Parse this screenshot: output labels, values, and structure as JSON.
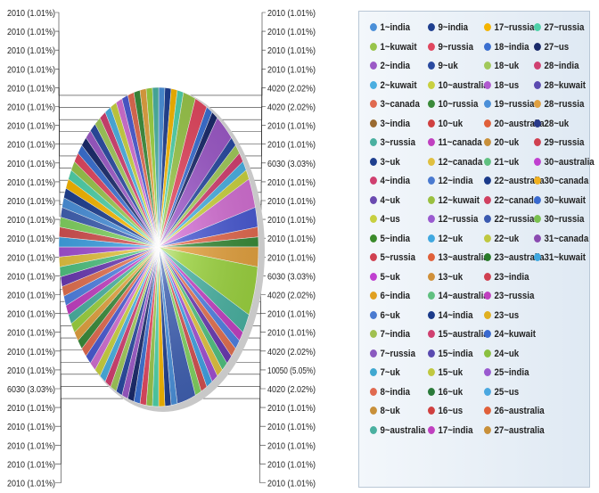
{
  "chart_data": {
    "type": "pie",
    "legend_position": "right",
    "left_labels": [
      "2010 (1.01%)",
      "2010 (1.01%)",
      "2010 (1.01%)",
      "2010 (1.01%)",
      "2010 (1.01%)",
      "2010 (1.01%)",
      "2010 (1.01%)",
      "2010 (1.01%)",
      "2010 (1.01%)",
      "2010 (1.01%)",
      "2010 (1.01%)",
      "2010 (1.01%)",
      "2010 (1.01%)",
      "2010 (1.01%)",
      "2010 (1.01%)",
      "2010 (1.01%)",
      "2010 (1.01%)",
      "2010 (1.01%)",
      "2010 (1.01%)",
      "2010 (1.01%)",
      "6030 (3.03%)",
      "2010 (1.01%)",
      "2010 (1.01%)",
      "2010 (1.01%)",
      "2010 (1.01%)",
      "2010 (1.01%)"
    ],
    "right_labels": [
      "2010 (1.01%)",
      "2010 (1.01%)",
      "2010 (1.01%)",
      "2010 (1.01%)",
      "4020 (2.02%)",
      "4020 (2.02%)",
      "2010 (1.01%)",
      "2010 (1.01%)",
      "6030 (3.03%)",
      "2010 (1.01%)",
      "2010 (1.01%)",
      "2010 (1.01%)",
      "2010 (1.01%)",
      "2010 (1.01%)",
      "6030 (3.03%)",
      "4020 (2.02%)",
      "2010 (1.01%)",
      "2010 (1.01%)",
      "4020 (2.02%)",
      "10050 (5.05%)",
      "4020 (2.02%)",
      "2010 (1.01%)",
      "2010 (1.01%)",
      "2010 (1.01%)",
      "2010 (1.01%)",
      "2010 (1.01%)"
    ],
    "slice_colors": [
      "#4a8fd8",
      "#1f3f8f",
      "#f4b400",
      "#4fd0a8",
      "#98c44a",
      "#e0475f",
      "#3a6fd0",
      "#1a2a6a",
      "#9b59c6",
      "#2a4aa0",
      "#a0c85a",
      "#d04070",
      "#4aaee0",
      "#c8d040",
      "#d06fd0",
      "#4a5ad0",
      "#e06a50",
      "#3a8a3a",
      "#e0a040",
      "#9ad040",
      "#4ab0a0",
      "#c040c0",
      "#5080e0",
      "#e07050",
      "#6a3ab0",
      "#50c080",
      "#e0c040",
      "#a050d0",
      "#40a0e0",
      "#d05050",
      "#80d060",
      "#4060b0"
    ],
    "legend_items": [
      {
        "label": "1~india",
        "color": "#4a8fd8"
      },
      {
        "label": "9~india",
        "color": "#1f3f8f"
      },
      {
        "label": "17~russia",
        "color": "#f4b400"
      },
      {
        "label": "27~russia",
        "color": "#4fd0a8"
      },
      {
        "label": "1~kuwait",
        "color": "#98c44a"
      },
      {
        "label": "9~russia",
        "color": "#e0475f"
      },
      {
        "label": "18~india",
        "color": "#3a6fd0"
      },
      {
        "label": "27~us",
        "color": "#1a2a6a"
      },
      {
        "label": "2~india",
        "color": "#9b59c6"
      },
      {
        "label": "9~uk",
        "color": "#2a4aa0"
      },
      {
        "label": "18~uk",
        "color": "#a0c85a"
      },
      {
        "label": "28~india",
        "color": "#d04070"
      },
      {
        "label": "2~kuwait",
        "color": "#4aaee0"
      },
      {
        "label": "10~australia",
        "color": "#c8d040"
      },
      {
        "label": "18~us",
        "color": "#b05ad0"
      },
      {
        "label": "28~kuwait",
        "color": "#5a4ab0"
      },
      {
        "label": "3~canada",
        "color": "#e06a50"
      },
      {
        "label": "10~russia",
        "color": "#3a8a3a"
      },
      {
        "label": "19~russia",
        "color": "#4a8fd8"
      },
      {
        "label": "28~russia",
        "color": "#e0a040"
      },
      {
        "label": "3~india",
        "color": "#9a6a30"
      },
      {
        "label": "10~uk",
        "color": "#d04040"
      },
      {
        "label": "20~australia",
        "color": "#e0603a"
      },
      {
        "label": "28~uk",
        "color": "#2a3a8a"
      },
      {
        "label": "3~russia",
        "color": "#4ab0a0"
      },
      {
        "label": "11~canada",
        "color": "#c040c0"
      },
      {
        "label": "20~uk",
        "color": "#c8903a"
      },
      {
        "label": "29~russia",
        "color": "#d04050"
      },
      {
        "label": "3~uk",
        "color": "#1f3f8f"
      },
      {
        "label": "12~canada",
        "color": "#e0c040"
      },
      {
        "label": "21~uk",
        "color": "#60c080"
      },
      {
        "label": "30~australia",
        "color": "#c040d0"
      },
      {
        "label": "4~india",
        "color": "#d04070"
      },
      {
        "label": "12~india",
        "color": "#4a7ad0"
      },
      {
        "label": "22~australia",
        "color": "#1a3a8a"
      },
      {
        "label": "30~canada",
        "color": "#f0b020"
      },
      {
        "label": "4~uk",
        "color": "#6a4ab0"
      },
      {
        "label": "12~kuwait",
        "color": "#9ac040"
      },
      {
        "label": "22~canada",
        "color": "#d04060"
      },
      {
        "label": "30~kuwait",
        "color": "#3a6ad0"
      },
      {
        "label": "4~us",
        "color": "#c8d040"
      },
      {
        "label": "12~russia",
        "color": "#9a5ad0"
      },
      {
        "label": "22~russia",
        "color": "#3a5ab0"
      },
      {
        "label": "30~russia",
        "color": "#7ac050"
      },
      {
        "label": "5~india",
        "color": "#3a8a2a"
      },
      {
        "label": "12~uk",
        "color": "#40a8e0"
      },
      {
        "label": "22~uk",
        "color": "#c0c840"
      },
      {
        "label": "31~canada",
        "color": "#8a4ab0"
      },
      {
        "label": "5~russia",
        "color": "#d04050"
      },
      {
        "label": "13~australia",
        "color": "#e0603a"
      },
      {
        "label": "23~australia",
        "color": "#2a7a2a"
      },
      {
        "label": "31~kuwait",
        "color": "#40a8e0"
      },
      {
        "label": "5~uk",
        "color": "#c040d0"
      },
      {
        "label": "13~uk",
        "color": "#d0903a"
      },
      {
        "label": "23~india",
        "color": "#d04050"
      },
      {
        "label": "6~india",
        "color": "#e0a020"
      },
      {
        "label": "14~australia",
        "color": "#60c080"
      },
      {
        "label": "23~russia",
        "color": "#c040c0"
      },
      {
        "label": "6~uk",
        "color": "#4a7ad0"
      },
      {
        "label": "14~india",
        "color": "#1a3a8a"
      },
      {
        "label": "23~us",
        "color": "#e0b020"
      },
      {
        "label": "7~india",
        "color": "#a0c050"
      },
      {
        "label": "15~australia",
        "color": "#d04070"
      },
      {
        "label": "24~kuwait",
        "color": "#3a6ad0"
      },
      {
        "label": "7~russia",
        "color": "#8a5ac0"
      },
      {
        "label": "15~india",
        "color": "#5a4ab0"
      },
      {
        "label": "24~uk",
        "color": "#8ac040"
      },
      {
        "label": "7~uk",
        "color": "#40a8d0"
      },
      {
        "label": "15~uk",
        "color": "#c0c840"
      },
      {
        "label": "25~india",
        "color": "#9a5ad0"
      },
      {
        "label": "8~india",
        "color": "#e06a50"
      },
      {
        "label": "16~uk",
        "color": "#2a7a3a"
      },
      {
        "label": "25~us",
        "color": "#4aa8e0"
      },
      {
        "label": "8~uk",
        "color": "#c8903a"
      },
      {
        "label": "16~us",
        "color": "#d04040"
      },
      {
        "label": "26~australia",
        "color": "#e0603a"
      },
      {
        "label": "9~australia",
        "color": "#4ab0a0"
      },
      {
        "label": "17~india",
        "color": "#c040c0"
      },
      {
        "label": "27~australia",
        "color": "#c8903a"
      }
    ]
  }
}
